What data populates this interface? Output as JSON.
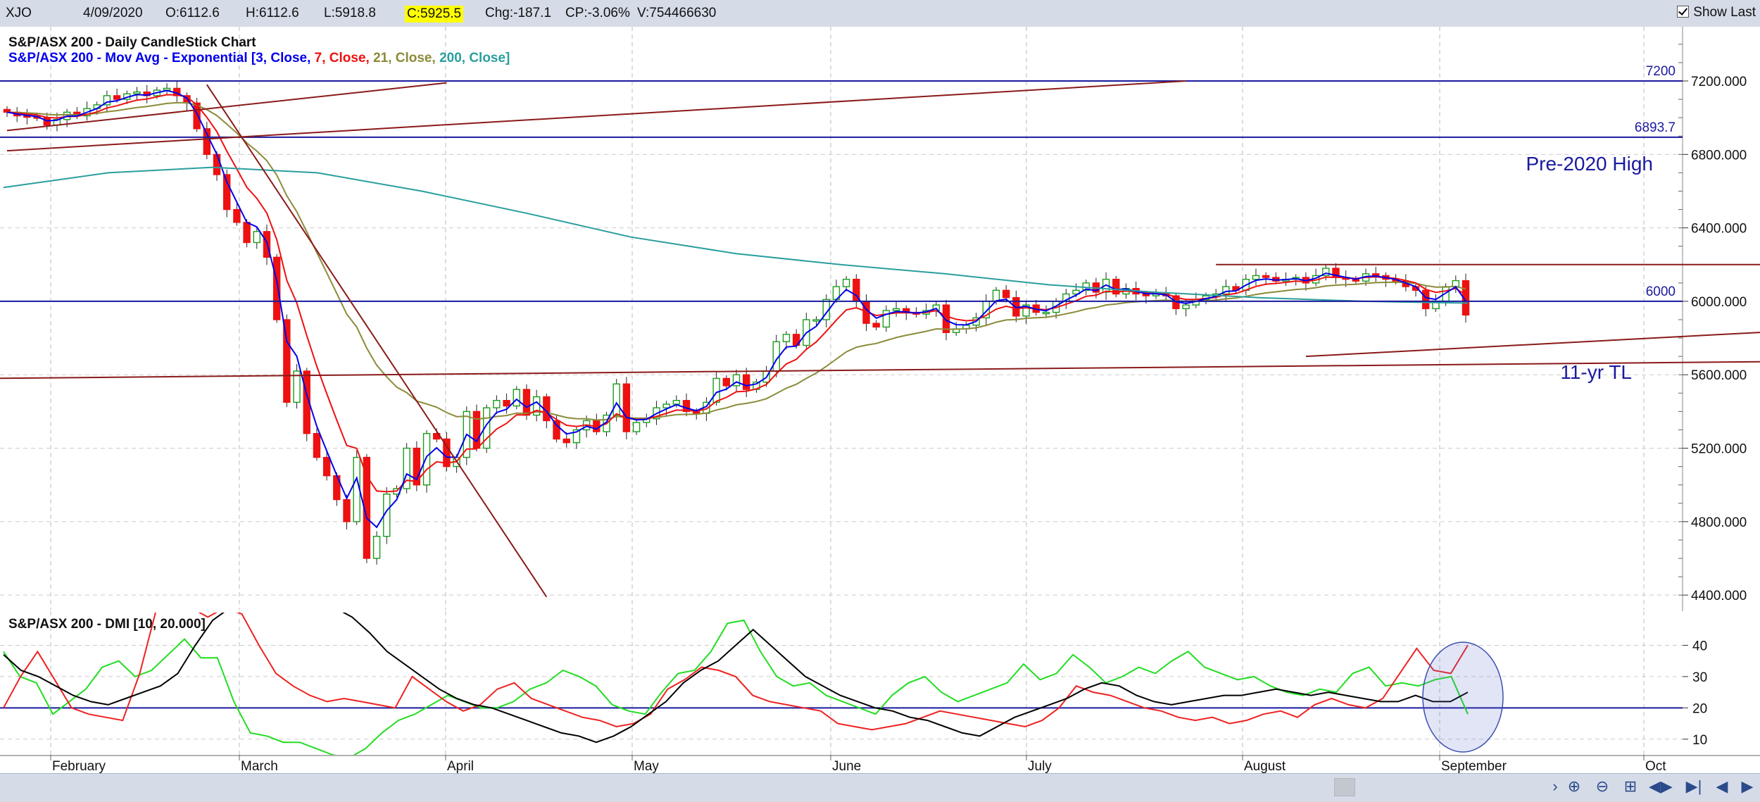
{
  "toolbar": {
    "symbol": "XJO",
    "date": "4/09/2020",
    "open": "O:6112.6",
    "high": "H:6112.6",
    "low": "L:5918.8",
    "close": "C:5925.5",
    "change": "Chg:-187.1",
    "change_pct": "CP:-3.06%",
    "volume": "V:754466630",
    "show_last_label": "Show Last"
  },
  "colors": {
    "up": "#1a9e1a",
    "down": "#ee1111",
    "ema3": "#0000ee",
    "ema7": "#ee1111",
    "ema21": "#8b8b3a",
    "ema200": "#2a9e9e",
    "hline": "#1a1a9e",
    "trendline": "#8b1a1a",
    "dmi_plus": "#22dd22",
    "dmi_minus": "#ee2222",
    "adx": "#000000"
  },
  "chart_data": [
    {
      "type": "candlestick",
      "title": "S&P/ASX 200 - Daily CandleStick Chart",
      "ma_legend_prefix": "S&P/ASX 200 - Mov Avg - Exponential",
      "ma_params": [
        "[3, Close, ",
        "7, Close, ",
        "21, Close, ",
        "200, Close]"
      ],
      "x_labels": [
        "February",
        "March",
        "April",
        "May",
        "June",
        "July",
        "August",
        "September",
        "Oct"
      ],
      "y_ticks": [
        "7200.000",
        "6800.000",
        "6400.000",
        "6000.000",
        "5600.000",
        "5200.000",
        "4800.000",
        "4400.000"
      ],
      "ylim": [
        4320,
        7480
      ],
      "hlines": [
        {
          "value": 7200,
          "label": "7200"
        },
        {
          "value": 6893.7,
          "label": "6893.7"
        },
        {
          "value": 6000,
          "label": "6000"
        }
      ],
      "annotations": [
        "Pre-2020 High",
        "11-yr TL"
      ],
      "closes": [
        7030,
        7010,
        7005,
        7000,
        6960,
        6990,
        7030,
        7010,
        7050,
        7070,
        7120,
        7100,
        7130,
        7140,
        7120,
        7150,
        7160,
        7120,
        7080,
        6940,
        6800,
        6690,
        6500,
        6430,
        6320,
        6380,
        6240,
        5900,
        5450,
        5620,
        5280,
        5150,
        5050,
        4920,
        4800,
        5150,
        4600,
        4720,
        4950,
        4980,
        5200,
        5000,
        5280,
        5250,
        5100,
        5150,
        5400,
        5200,
        5420,
        5460,
        5430,
        5520,
        5380,
        5480,
        5350,
        5250,
        5230,
        5300,
        5350,
        5290,
        5380,
        5550,
        5290,
        5340,
        5360,
        5420,
        5440,
        5460,
        5400,
        5390,
        5450,
        5580,
        5540,
        5600,
        5520,
        5560,
        5620,
        5780,
        5820,
        5760,
        5900,
        5900,
        6010,
        6080,
        6120,
        6000,
        5880,
        5860,
        5950,
        5960,
        5940,
        5930,
        5950,
        5980,
        5830,
        5850,
        5870,
        5910,
        6000,
        6060,
        6020,
        5920,
        5980,
        5940,
        5940,
        6000,
        6040,
        6060,
        6100,
        6050,
        6120,
        6040,
        6070,
        6040,
        6030,
        6040,
        6030,
        5960,
        5980,
        6010,
        6030,
        6040,
        6080,
        6060,
        6120,
        6140,
        6130,
        6110,
        6120,
        6130,
        6100,
        6140,
        6180,
        6130,
        6120,
        6110,
        6150,
        6140,
        6120,
        6110,
        6080,
        6060,
        5960,
        6000,
        6080,
        6112.6,
        5925.5
      ],
      "ema200": [
        6620,
        6700,
        6730,
        6700,
        6600,
        6480,
        6350,
        6260,
        6200,
        6150,
        6090,
        6050,
        6020,
        6000,
        5990
      ],
      "dmi": {
        "title": "S&P/ASX 200 - DMI [10, 20.000]",
        "y_ticks": [
          "40",
          "30",
          "20",
          "10"
        ],
        "ylim": [
          5,
          50
        ],
        "threshold": 20,
        "plus_di": [
          38,
          30,
          28,
          18,
          22,
          26,
          33,
          35,
          30,
          32,
          37,
          42,
          36,
          36,
          22,
          12,
          11,
          9,
          9,
          7,
          5,
          4,
          7,
          12,
          16,
          18,
          21,
          24,
          22,
          20,
          20,
          22,
          26,
          28,
          32,
          30,
          27,
          21,
          19,
          18,
          25,
          31,
          32,
          38,
          47,
          48,
          38,
          30,
          27,
          28,
          24,
          22,
          20,
          18,
          24,
          28,
          30,
          25,
          22,
          24,
          26,
          28,
          34,
          29,
          31,
          37,
          33,
          28,
          30,
          33,
          31,
          35,
          38,
          33,
          31,
          29,
          30,
          27,
          25,
          24,
          26,
          25,
          31,
          33,
          27,
          28,
          27,
          29,
          30,
          18
        ],
        "minus_di": [
          20,
          30,
          38,
          29,
          20,
          18,
          17,
          16,
          31,
          55,
          75,
          60,
          49,
          60,
          50,
          40,
          31,
          27,
          24,
          22,
          23,
          22,
          21,
          20,
          30,
          26,
          22,
          19,
          21,
          26,
          28,
          23,
          21,
          19,
          17,
          16,
          14,
          15,
          18,
          26,
          29,
          33,
          32,
          30,
          24,
          22,
          21,
          20,
          19,
          15,
          14,
          13,
          14,
          15,
          17,
          19,
          18,
          17,
          16,
          15,
          14,
          16,
          20,
          27,
          25,
          24,
          22,
          20,
          19,
          17,
          16,
          17,
          15,
          16,
          18,
          19,
          17,
          21,
          23,
          21,
          20,
          23,
          31,
          39,
          32,
          31,
          40
        ],
        "adx": [
          37,
          32,
          30,
          27,
          24,
          22,
          21,
          23,
          25,
          27,
          31,
          40,
          48,
          55,
          60,
          62,
          66,
          62,
          58,
          54,
          49,
          44,
          38,
          34,
          30,
          26,
          23,
          21,
          20,
          18,
          16,
          14,
          12,
          11,
          9,
          11,
          14,
          18,
          22,
          28,
          32,
          35,
          40,
          45,
          40,
          35,
          30,
          27,
          24,
          22,
          20,
          19,
          17,
          16,
          14,
          12,
          11,
          14,
          17,
          19,
          21,
          23,
          26,
          28,
          27,
          24,
          22,
          21,
          22,
          23,
          24,
          24,
          25,
          26,
          25,
          24,
          25,
          24,
          23,
          22,
          22,
          24,
          22,
          22,
          25
        ]
      }
    }
  ]
}
